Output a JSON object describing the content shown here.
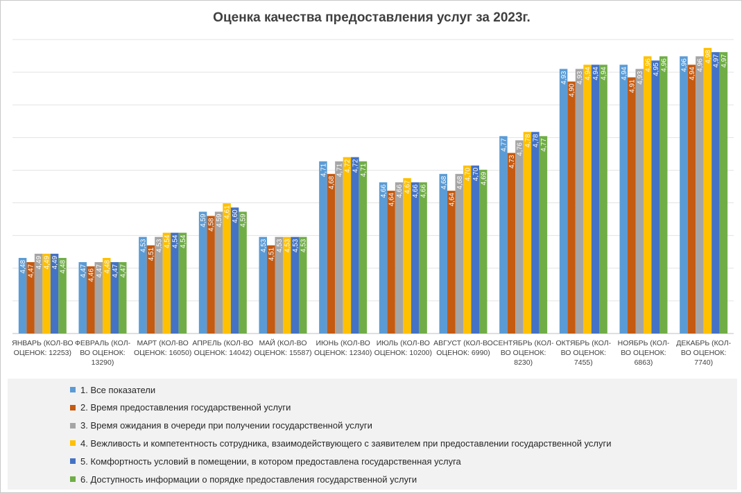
{
  "chart_data": {
    "type": "bar",
    "title": "Оценка качества предоставления услуг за 2023г.",
    "xlabel": "",
    "ylabel": "",
    "ylim": [
      4.3,
      5.0
    ],
    "grid": true,
    "legend_position": "bottom",
    "categories": [
      [
        "ЯНВАРЬ (КОЛ-ВО",
        "ОЦЕНОК: 12253)"
      ],
      [
        "ФЕВРАЛЬ (КОЛ-",
        "ВО ОЦЕНОК:",
        "13290)"
      ],
      [
        "МАРТ (КОЛ-ВО",
        "ОЦЕНОК: 16050)"
      ],
      [
        "АПРЕЛЬ (КОЛ-ВО",
        "ОЦЕНОК: 14042)"
      ],
      [
        "МАЙ (КОЛ-ВО",
        "ОЦЕНОК: 15587)"
      ],
      [
        "ИЮНЬ (КОЛ-ВО",
        "ОЦЕНОК: 12340)"
      ],
      [
        "ИЮЛЬ (КОЛ-ВО",
        "ОЦЕНОК: 10200)"
      ],
      [
        "АВГУСТ (КОЛ-ВО",
        "ОЦЕНОК: 6990)"
      ],
      [
        "СЕНТЯБРЬ (КОЛ-",
        "ВО ОЦЕНОК:",
        "8230)"
      ],
      [
        "ОКТЯБРЬ (КОЛ-",
        "ВО ОЦЕНОК:",
        "7455)"
      ],
      [
        "НОЯБРЬ (КОЛ-",
        "ВО ОЦЕНОК:",
        "6863)"
      ],
      [
        "ДЕКАБРЬ (КОЛ-",
        "ВО ОЦЕНОК:",
        "7740)"
      ]
    ],
    "series": [
      {
        "name": "1. Все показатели",
        "color": "#5B9BD5",
        "values": [
          4.48,
          4.47,
          4.53,
          4.59,
          4.53,
          4.71,
          4.66,
          4.68,
          4.77,
          4.93,
          4.94,
          4.96
        ]
      },
      {
        "name": "2. Время предоставления государственной услуги",
        "color": "#C55A11",
        "values": [
          4.47,
          4.46,
          4.51,
          4.58,
          4.51,
          4.68,
          4.64,
          4.64,
          4.73,
          4.9,
          4.91,
          4.94
        ]
      },
      {
        "name": "3. Время ожидания в очереди при получении государственной услуги",
        "color": "#A5A5A5",
        "values": [
          4.49,
          4.47,
          4.53,
          4.59,
          4.53,
          4.71,
          4.66,
          4.68,
          4.76,
          4.93,
          4.93,
          4.96
        ]
      },
      {
        "name": "4. Вежливость и компетентность сотрудника, взаимодействующего с заявителем при предоставлении государственной услуги",
        "color": "#FFC000",
        "values": [
          4.49,
          4.48,
          4.54,
          4.61,
          4.53,
          4.72,
          4.67,
          4.7,
          4.78,
          4.94,
          4.96,
          4.98
        ]
      },
      {
        "name": "5. Комфортность условий в помещении, в котором  предоставлена государственная услуга",
        "color": "#4472C4",
        "values": [
          4.49,
          4.47,
          4.54,
          4.6,
          4.53,
          4.72,
          4.66,
          4.7,
          4.78,
          4.94,
          4.95,
          4.97
        ]
      },
      {
        "name": "6. Доступность информации о порядке  предоставления государственной услуги",
        "color": "#70AD47",
        "values": [
          4.48,
          4.47,
          4.54,
          4.59,
          4.53,
          4.71,
          4.66,
          4.69,
          4.77,
          4.94,
          4.96,
          4.97
        ]
      }
    ]
  }
}
